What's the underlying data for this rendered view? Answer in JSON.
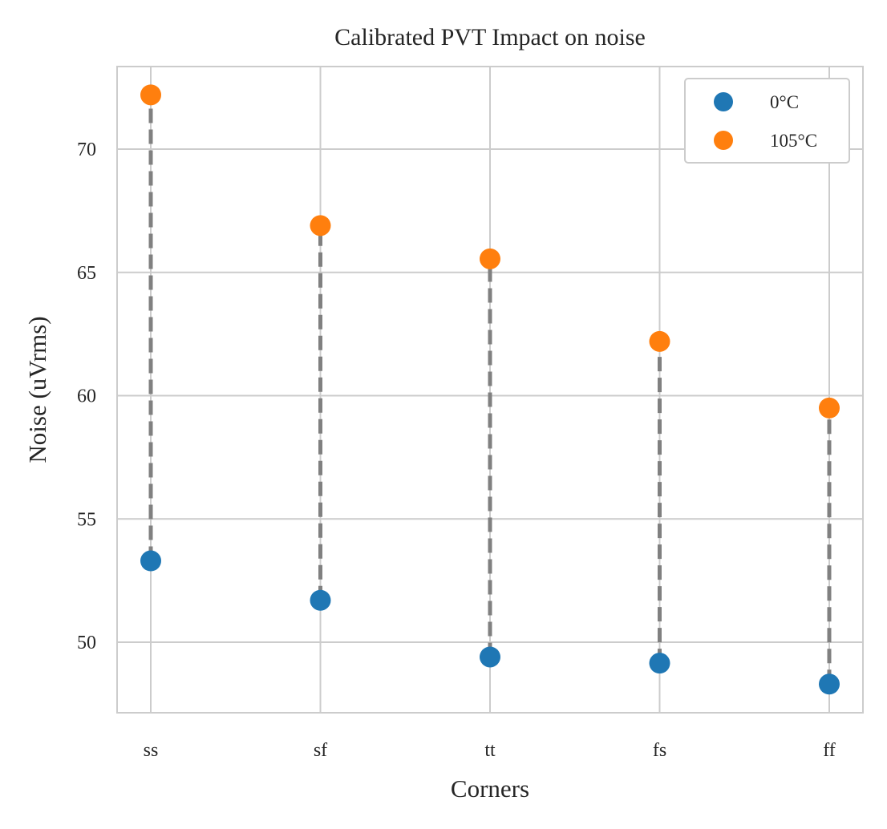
{
  "chart_data": {
    "type": "scatter",
    "title": "Calibrated PVT Impact on noise",
    "xlabel": "Corners",
    "ylabel": "Noise (uVrms)",
    "categories": [
      "ss",
      "sf",
      "tt",
      "fs",
      "ff"
    ],
    "yticks": [
      50,
      55,
      60,
      65,
      70
    ],
    "ylim": [
      47.1,
      73.4
    ],
    "grid": true,
    "legend_position": "top-right",
    "series": [
      {
        "name": "0°C",
        "color": "#1f77b4",
        "values": [
          53.3,
          51.7,
          49.4,
          49.15,
          48.3
        ]
      },
      {
        "name": "105°C",
        "color": "#ff7f0e",
        "values": [
          72.2,
          66.9,
          65.55,
          62.2,
          59.5
        ]
      }
    ],
    "connector_color": "#808080",
    "connector_style": "dashed"
  }
}
